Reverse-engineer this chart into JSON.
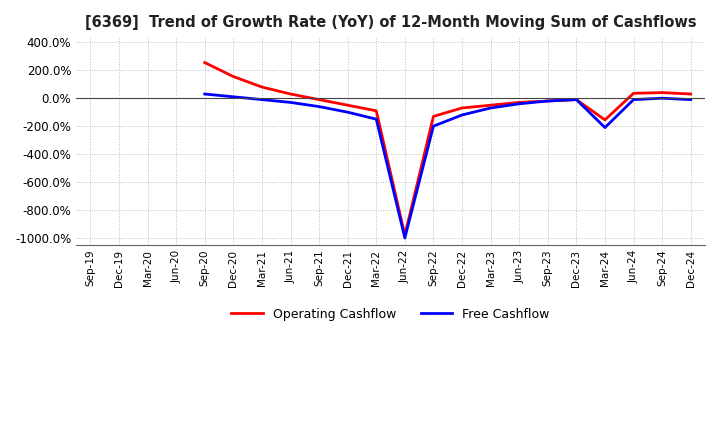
{
  "title": "[6369]  Trend of Growth Rate (YoY) of 12-Month Moving Sum of Cashflows",
  "ylim": [
    -1050,
    430
  ],
  "yticks": [
    400,
    200,
    0,
    -200,
    -400,
    -600,
    -800,
    -1000
  ],
  "ytick_labels": [
    "400.0%",
    "200.0%",
    "0.0%",
    "-200.0%",
    "-400.0%",
    "-600.0%",
    "-800.0%",
    "-1000.0%"
  ],
  "legend_labels": [
    "Operating Cashflow",
    "Free Cashflow"
  ],
  "legend_colors": [
    "#ff0000",
    "#0000ff"
  ],
  "grid_color": "#bbbbbb",
  "background_color": "#ffffff",
  "x_dates": [
    "Sep-19",
    "Dec-19",
    "Mar-20",
    "Jun-20",
    "Sep-20",
    "Dec-20",
    "Mar-21",
    "Jun-21",
    "Sep-21",
    "Dec-21",
    "Mar-22",
    "Jun-22",
    "Sep-22",
    "Dec-22",
    "Mar-23",
    "Jun-23",
    "Sep-23",
    "Dec-23",
    "Mar-24",
    "Jun-24",
    "Sep-24",
    "Dec-24"
  ],
  "operating_cashflow": [
    null,
    null,
    null,
    null,
    255,
    155,
    80,
    30,
    -10,
    -50,
    -90,
    -980,
    -130,
    -70,
    -50,
    -30,
    -20,
    -10,
    -155,
    35,
    40,
    30
  ],
  "free_cashflow": [
    null,
    null,
    null,
    null,
    30,
    10,
    -10,
    -30,
    -60,
    -100,
    -150,
    -1000,
    -200,
    -120,
    -70,
    -40,
    -20,
    -10,
    -210,
    -10,
    0,
    -10
  ]
}
